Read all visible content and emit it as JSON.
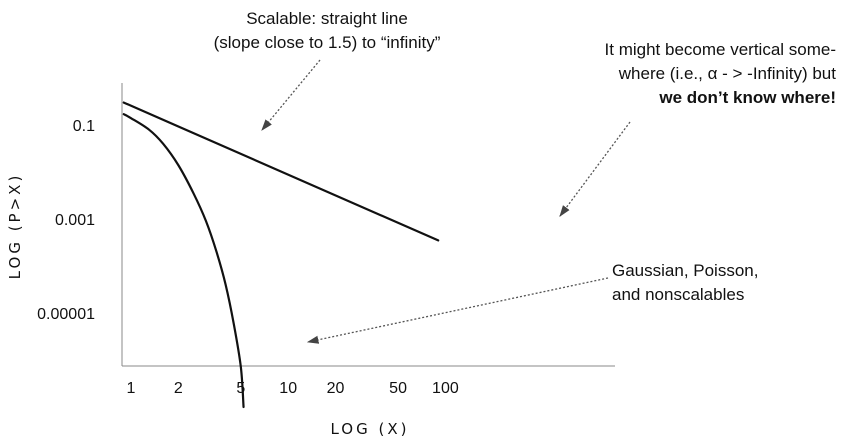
{
  "chart_data": {
    "type": "line",
    "title": "",
    "xlabel": "LOG (X)",
    "ylabel": "LOG (P>X)",
    "xscale": "log",
    "yscale": "log",
    "grid": false,
    "x_tick_labels": [
      "1",
      "2",
      "5",
      "10",
      "20",
      "50",
      "100"
    ],
    "x_ticks": [
      1,
      2,
      5,
      10,
      20,
      50,
      100
    ],
    "y_tick_labels": [
      "0.1",
      "0.001",
      "0.00001"
    ],
    "y_ticks": [
      0.1,
      0.001,
      1e-05
    ],
    "xlim": [
      0.85,
      140
    ],
    "ylim": [
      1e-07,
      1
    ],
    "series": [
      {
        "label": "scalable",
        "color": "#111111",
        "x": [
          0.9,
          90
        ],
        "y": [
          0.3,
          0.00035
        ]
      },
      {
        "label": "nonscalable",
        "color": "#111111",
        "x": [
          0.9,
          1.0,
          1.3,
          1.6,
          2.0,
          2.5,
          3.0,
          3.5,
          4.0,
          4.5,
          5.0,
          5.2
        ],
        "y": [
          0.17,
          0.14,
          0.08,
          0.04,
          0.014,
          0.0035,
          0.0009,
          0.0002,
          4e-05,
          6e-06,
          7e-07,
          1e-07
        ]
      }
    ],
    "annotations": [
      {
        "lines": [
          {
            "segments": [
              {
                "text": "Scalable: straight line",
                "bold": false
              }
            ]
          },
          {
            "segments": [
              {
                "text": "(slope close to 1.5) to “infinity”",
                "bold": false
              }
            ]
          }
        ],
        "align": "middle"
      },
      {
        "lines": [
          {
            "segments": [
              {
                "text": "It might become vertical some-",
                "bold": false
              }
            ]
          },
          {
            "segments": [
              {
                "text": "where (i.e., α - > -Infinity) but",
                "bold": false
              }
            ]
          },
          {
            "segments": [
              {
                "text": "we don’t know where!",
                "bold": true
              }
            ]
          }
        ],
        "align": "end"
      },
      {
        "lines": [
          {
            "segments": [
              {
                "text": "Gaussian, Poisson,",
                "bold": false
              }
            ]
          },
          {
            "segments": [
              {
                "text": "and nonscalables",
                "bold": false
              }
            ]
          }
        ],
        "align": "start"
      }
    ]
  }
}
